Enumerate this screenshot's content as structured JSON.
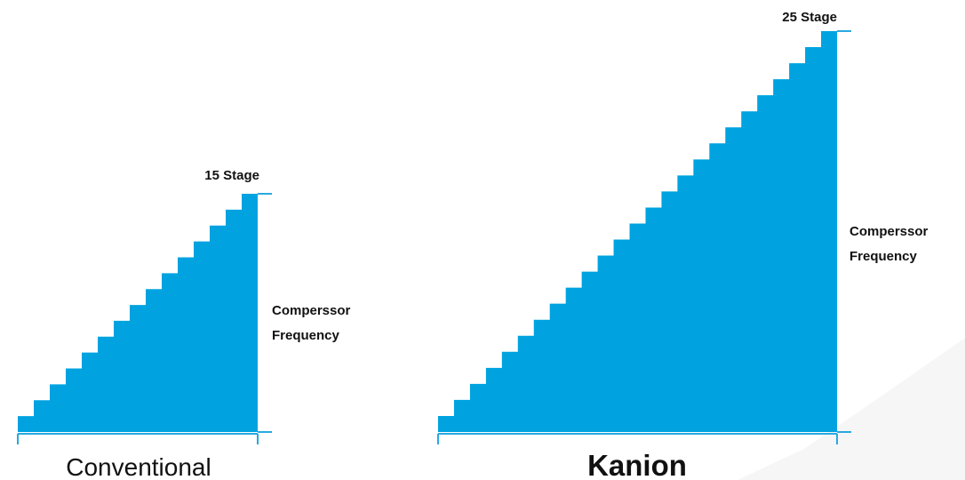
{
  "colors": {
    "stair": "#00a3e0",
    "axis": "#29a9e1",
    "text": "#111111",
    "watermark": "#f7f7f7"
  },
  "diagrams": [
    {
      "key": "conventional",
      "stages": 15,
      "stage_label": "15 Stage",
      "freq_line1": "Comperssor",
      "freq_line2": "Frequency",
      "title": "Conventional"
    },
    {
      "key": "kanion",
      "stages": 25,
      "stage_label": "25 Stage",
      "freq_line1": "Comperssor",
      "freq_line2": "Frequency",
      "title": "Kanion"
    }
  ]
}
